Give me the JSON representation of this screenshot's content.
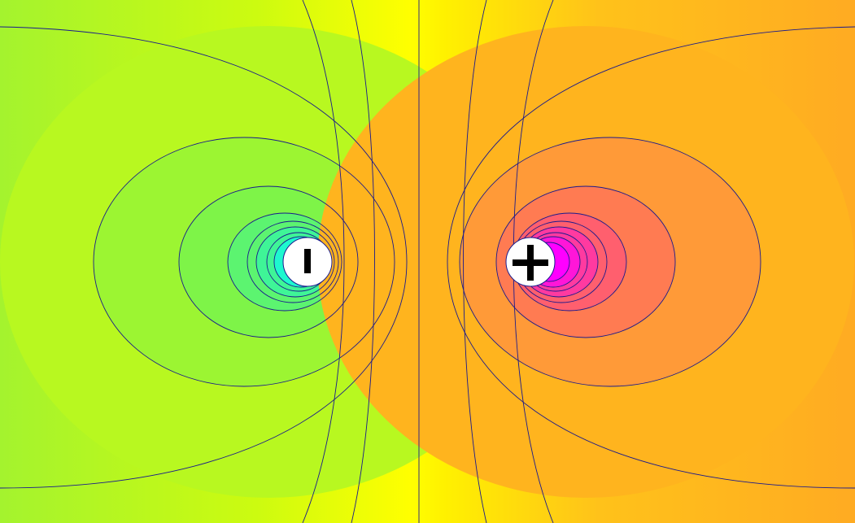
{
  "charges": [
    {
      "sign": "-",
      "label": "I"
    },
    {
      "sign": "+",
      "label": "+"
    }
  ],
  "colors": {
    "background_center": "#ffff00",
    "contour_line": "#1a1a8c",
    "negative_core": "#00ffff",
    "positive_core": "#ff00ff",
    "charge_fill": "#ffffff"
  }
}
